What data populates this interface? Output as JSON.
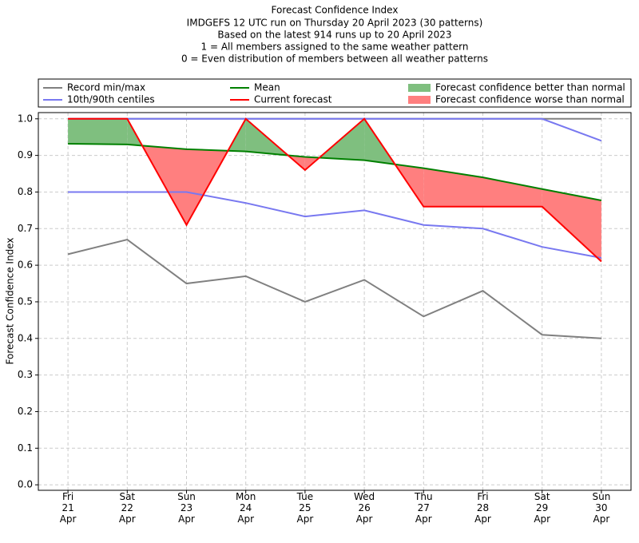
{
  "chart_data": {
    "type": "line",
    "title": "Forecast Confidence Index",
    "subtitle": [
      "IMDGEFS 12 UTC run on Thursday 20 April 2023 (30 patterns)",
      "Based on the latest 914 runs up to 20 April 2023",
      "1 = All members assigned to the same weather pattern",
      "0 = Even distribution of members between all weather patterns"
    ],
    "ylabel": "Forecast Confidence Index",
    "categories": [
      "Fri\n21\nApr",
      "Sat\n22\nApr",
      "Sun\n23\nApr",
      "Mon\n24\nApr",
      "Tue\n25\nApr",
      "Wed\n26\nApr",
      "Thu\n27\nApr",
      "Fri\n28\nApr",
      "Sat\n29\nApr",
      "Sun\n30\nApr"
    ],
    "ylim": [
      -0.015,
      1.017
    ],
    "yticks": [
      {
        "value": 0,
        "label": "0.0"
      },
      0.1,
      0.2,
      0.3,
      0.4,
      0.5,
      0.6,
      0.7,
      0.8,
      0.9,
      {
        "value": 1,
        "label": "1.0"
      }
    ],
    "grid": true,
    "bands": [
      {
        "name": "Record min/max",
        "color": "#808080",
        "lower": [
          0.63,
          0.67,
          0.55,
          0.57,
          0.5,
          0.56,
          0.46,
          0.53,
          0.41,
          0.4
        ],
        "upper": [
          1,
          1,
          1,
          1,
          1,
          1,
          1,
          1,
          1,
          1
        ]
      },
      {
        "name": "10th/90th centiles",
        "color": "#7878f0",
        "lower": [
          0.8,
          0.8,
          0.8,
          0.77,
          0.733,
          0.75,
          0.71,
          0.7,
          0.65,
          0.62
        ],
        "upper": [
          1,
          1,
          1,
          1,
          1,
          1,
          1,
          1,
          1,
          0.94
        ]
      }
    ],
    "series": [
      {
        "name": "Mean",
        "color": "#008000",
        "values": [
          0.932,
          0.93,
          0.917,
          0.911,
          0.896,
          0.887,
          0.865,
          0.84,
          0.808,
          0.777
        ]
      },
      {
        "name": "Current forecast",
        "color": "#ff0000",
        "values": [
          1,
          1,
          0.71,
          1,
          0.86,
          1,
          0.76,
          0.76,
          0.76,
          0.61
        ]
      }
    ],
    "fills": [
      {
        "name": "Forecast confidence better than normal",
        "color": "#7fbf7f"
      },
      {
        "name": "Forecast confidence worse than normal",
        "color": "#ff7f7f"
      }
    ]
  }
}
